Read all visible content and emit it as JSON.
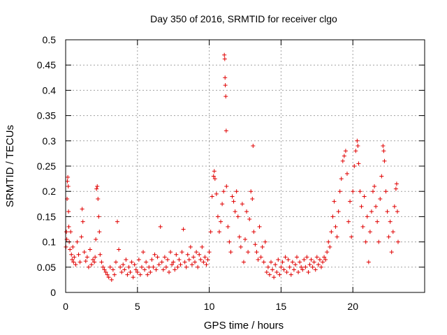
{
  "chart_data": {
    "type": "scatter",
    "title": "Day 350 of 2016, SRMTID for receiver clgo",
    "xlabel": "GPS time / hours",
    "ylabel": "SRMTID / TECUs",
    "xlim": [
      0,
      25
    ],
    "ylim": [
      0,
      0.5
    ],
    "xticks": [
      0,
      5,
      10,
      15,
      20
    ],
    "xtick_labels": [
      "0",
      "5",
      "10",
      "15",
      "20"
    ],
    "yticks": [
      0,
      0.05,
      0.1,
      0.15,
      0.2,
      0.25,
      0.3,
      0.35,
      0.4,
      0.45,
      0.5
    ],
    "ytick_labels": [
      "0",
      "0.05",
      "0.1",
      "0.15",
      "0.2",
      "0.25",
      "0.3",
      "0.35",
      "0.4",
      "0.45",
      "0.5"
    ],
    "grid": true,
    "marker": "+",
    "color": "#e00000",
    "series": [
      {
        "name": "SRMTID",
        "points": [
          [
            0.02,
            0.09
          ],
          [
            0.05,
            0.12
          ],
          [
            0.08,
            0.105
          ],
          [
            0.1,
            0.185
          ],
          [
            0.12,
            0.22
          ],
          [
            0.15,
            0.228
          ],
          [
            0.18,
            0.21
          ],
          [
            0.2,
            0.16
          ],
          [
            0.22,
            0.13
          ],
          [
            0.25,
            0.1
          ],
          [
            0.3,
            0.085
          ],
          [
            0.35,
            0.12
          ],
          [
            0.4,
            0.075
          ],
          [
            0.45,
            0.065
          ],
          [
            0.5,
            0.09
          ],
          [
            0.55,
            0.06
          ],
          [
            0.6,
            0.07
          ],
          [
            0.7,
            0.055
          ],
          [
            0.8,
            0.1
          ],
          [
            0.9,
            0.075
          ],
          [
            1.0,
            0.06
          ],
          [
            1.1,
            0.11
          ],
          [
            1.15,
            0.165
          ],
          [
            1.2,
            0.14
          ],
          [
            1.3,
            0.08
          ],
          [
            1.4,
            0.062
          ],
          [
            1.5,
            0.07
          ],
          [
            1.6,
            0.05
          ],
          [
            1.7,
            0.085
          ],
          [
            1.8,
            0.055
          ],
          [
            1.9,
            0.065
          ],
          [
            2.0,
            0.06
          ],
          [
            2.05,
            0.07
          ],
          [
            2.1,
            0.105
          ],
          [
            2.15,
            0.205
          ],
          [
            2.2,
            0.21
          ],
          [
            2.25,
            0.185
          ],
          [
            2.3,
            0.15
          ],
          [
            2.35,
            0.12
          ],
          [
            2.4,
            0.075
          ],
          [
            2.5,
            0.06
          ],
          [
            2.6,
            0.05
          ],
          [
            2.7,
            0.045
          ],
          [
            2.8,
            0.04
          ],
          [
            2.9,
            0.035
          ],
          [
            3.0,
            0.03
          ],
          [
            3.1,
            0.05
          ],
          [
            3.2,
            0.025
          ],
          [
            3.3,
            0.045
          ],
          [
            3.4,
            0.035
          ],
          [
            3.5,
            0.06
          ],
          [
            3.6,
            0.14
          ],
          [
            3.7,
            0.085
          ],
          [
            3.8,
            0.05
          ],
          [
            3.9,
            0.04
          ],
          [
            4.0,
            0.055
          ],
          [
            4.1,
            0.045
          ],
          [
            4.2,
            0.065
          ],
          [
            4.3,
            0.035
          ],
          [
            4.4,
            0.05
          ],
          [
            4.5,
            0.04
          ],
          [
            4.6,
            0.06
          ],
          [
            4.7,
            0.03
          ],
          [
            4.8,
            0.055
          ],
          [
            4.9,
            0.045
          ],
          [
            5.0,
            0.04
          ],
          [
            5.1,
            0.065
          ],
          [
            5.2,
            0.035
          ],
          [
            5.3,
            0.05
          ],
          [
            5.4,
            0.08
          ],
          [
            5.5,
            0.045
          ],
          [
            5.6,
            0.06
          ],
          [
            5.7,
            0.035
          ],
          [
            5.8,
            0.05
          ],
          [
            5.9,
            0.04
          ],
          [
            6.0,
            0.065
          ],
          [
            6.1,
            0.05
          ],
          [
            6.2,
            0.075
          ],
          [
            6.3,
            0.045
          ],
          [
            6.4,
            0.07
          ],
          [
            6.5,
            0.055
          ],
          [
            6.6,
            0.13
          ],
          [
            6.7,
            0.06
          ],
          [
            6.8,
            0.045
          ],
          [
            6.9,
            0.07
          ],
          [
            7.0,
            0.05
          ],
          [
            7.1,
            0.065
          ],
          [
            7.2,
            0.04
          ],
          [
            7.3,
            0.08
          ],
          [
            7.4,
            0.055
          ],
          [
            7.5,
            0.06
          ],
          [
            7.6,
            0.045
          ],
          [
            7.7,
            0.075
          ],
          [
            7.8,
            0.05
          ],
          [
            7.9,
            0.065
          ],
          [
            8.0,
            0.055
          ],
          [
            8.1,
            0.08
          ],
          [
            8.2,
            0.125
          ],
          [
            8.3,
            0.06
          ],
          [
            8.4,
            0.05
          ],
          [
            8.5,
            0.075
          ],
          [
            8.6,
            0.065
          ],
          [
            8.7,
            0.09
          ],
          [
            8.8,
            0.055
          ],
          [
            8.9,
            0.07
          ],
          [
            9.0,
            0.06
          ],
          [
            9.1,
            0.08
          ],
          [
            9.2,
            0.05
          ],
          [
            9.3,
            0.075
          ],
          [
            9.4,
            0.065
          ],
          [
            9.5,
            0.09
          ],
          [
            9.6,
            0.06
          ],
          [
            9.7,
            0.07
          ],
          [
            9.8,
            0.055
          ],
          [
            9.9,
            0.065
          ],
          [
            10.0,
            0.08
          ],
          [
            10.1,
            0.12
          ],
          [
            10.2,
            0.19
          ],
          [
            10.3,
            0.23
          ],
          [
            10.35,
            0.24
          ],
          [
            10.4,
            0.225
          ],
          [
            10.5,
            0.195
          ],
          [
            10.6,
            0.15
          ],
          [
            10.7,
            0.12
          ],
          [
            10.8,
            0.14
          ],
          [
            10.9,
            0.175
          ],
          [
            11.0,
            0.2
          ],
          [
            11.05,
            0.47
          ],
          [
            11.08,
            0.462
          ],
          [
            11.1,
            0.425
          ],
          [
            11.12,
            0.41
          ],
          [
            11.15,
            0.388
          ],
          [
            11.18,
            0.32
          ],
          [
            11.2,
            0.21
          ],
          [
            11.3,
            0.13
          ],
          [
            11.4,
            0.1
          ],
          [
            11.5,
            0.08
          ],
          [
            11.6,
            0.19
          ],
          [
            11.7,
            0.18
          ],
          [
            11.8,
            0.16
          ],
          [
            11.9,
            0.2
          ],
          [
            12.0,
            0.15
          ],
          [
            12.1,
            0.11
          ],
          [
            12.2,
            0.09
          ],
          [
            12.3,
            0.175
          ],
          [
            12.4,
            0.06
          ],
          [
            12.5,
            0.105
          ],
          [
            12.6,
            0.16
          ],
          [
            12.7,
            0.08
          ],
          [
            12.8,
            0.145
          ],
          [
            12.9,
            0.2
          ],
          [
            13.0,
            0.185
          ],
          [
            13.05,
            0.29
          ],
          [
            13.1,
            0.12
          ],
          [
            13.2,
            0.095
          ],
          [
            13.3,
            0.08
          ],
          [
            13.4,
            0.065
          ],
          [
            13.5,
            0.13
          ],
          [
            13.6,
            0.07
          ],
          [
            13.7,
            0.09
          ],
          [
            13.8,
            0.06
          ],
          [
            13.9,
            0.1
          ],
          [
            14.0,
            0.04
          ],
          [
            14.1,
            0.05
          ],
          [
            14.2,
            0.035
          ],
          [
            14.3,
            0.06
          ],
          [
            14.4,
            0.045
          ],
          [
            14.5,
            0.03
          ],
          [
            14.6,
            0.055
          ],
          [
            14.7,
            0.04
          ],
          [
            14.8,
            0.065
          ],
          [
            14.9,
            0.035
          ],
          [
            15.0,
            0.05
          ],
          [
            15.1,
            0.06
          ],
          [
            15.2,
            0.045
          ],
          [
            15.3,
            0.07
          ],
          [
            15.4,
            0.04
          ],
          [
            15.5,
            0.065
          ],
          [
            15.6,
            0.05
          ],
          [
            15.7,
            0.035
          ],
          [
            15.8,
            0.06
          ],
          [
            15.9,
            0.045
          ],
          [
            16.0,
            0.055
          ],
          [
            16.1,
            0.07
          ],
          [
            16.2,
            0.04
          ],
          [
            16.3,
            0.06
          ],
          [
            16.4,
            0.05
          ],
          [
            16.5,
            0.045
          ],
          [
            16.6,
            0.065
          ],
          [
            16.7,
            0.05
          ],
          [
            16.8,
            0.07
          ],
          [
            16.9,
            0.04
          ],
          [
            17.0,
            0.055
          ],
          [
            17.1,
            0.065
          ],
          [
            17.2,
            0.05
          ],
          [
            17.3,
            0.06
          ],
          [
            17.4,
            0.045
          ],
          [
            17.5,
            0.07
          ],
          [
            17.6,
            0.055
          ],
          [
            17.7,
            0.065
          ],
          [
            17.8,
            0.05
          ],
          [
            17.9,
            0.06
          ],
          [
            18.0,
            0.07
          ],
          [
            18.1,
            0.065
          ],
          [
            18.2,
            0.08
          ],
          [
            18.3,
            0.1
          ],
          [
            18.4,
            0.09
          ],
          [
            18.5,
            0.12
          ],
          [
            18.6,
            0.15
          ],
          [
            18.7,
            0.18
          ],
          [
            18.8,
            0.13
          ],
          [
            18.9,
            0.11
          ],
          [
            19.0,
            0.16
          ],
          [
            19.1,
            0.2
          ],
          [
            19.2,
            0.225
          ],
          [
            19.3,
            0.26
          ],
          [
            19.4,
            0.27
          ],
          [
            19.5,
            0.28
          ],
          [
            19.6,
            0.235
          ],
          [
            19.7,
            0.14
          ],
          [
            19.8,
            0.18
          ],
          [
            19.9,
            0.11
          ],
          [
            20.0,
            0.2
          ],
          [
            20.1,
            0.25
          ],
          [
            20.2,
            0.28
          ],
          [
            20.3,
            0.3
          ],
          [
            20.35,
            0.29
          ],
          [
            20.4,
            0.255
          ],
          [
            20.5,
            0.2
          ],
          [
            20.6,
            0.17
          ],
          [
            20.7,
            0.13
          ],
          [
            20.8,
            0.19
          ],
          [
            20.9,
            0.1
          ],
          [
            21.0,
            0.15
          ],
          [
            21.1,
            0.06
          ],
          [
            21.2,
            0.12
          ],
          [
            21.3,
            0.16
          ],
          [
            21.4,
            0.2
          ],
          [
            21.5,
            0.21
          ],
          [
            21.6,
            0.17
          ],
          [
            21.7,
            0.14
          ],
          [
            21.8,
            0.1
          ],
          [
            21.9,
            0.185
          ],
          [
            22.0,
            0.23
          ],
          [
            22.1,
            0.29
          ],
          [
            22.15,
            0.28
          ],
          [
            22.2,
            0.26
          ],
          [
            22.3,
            0.2
          ],
          [
            22.4,
            0.16
          ],
          [
            22.5,
            0.11
          ],
          [
            22.6,
            0.14
          ],
          [
            22.7,
            0.08
          ],
          [
            22.8,
            0.12
          ],
          [
            22.9,
            0.17
          ],
          [
            23.0,
            0.205
          ],
          [
            23.05,
            0.215
          ],
          [
            23.1,
            0.16
          ],
          [
            23.15,
            0.1
          ]
        ]
      }
    ]
  }
}
